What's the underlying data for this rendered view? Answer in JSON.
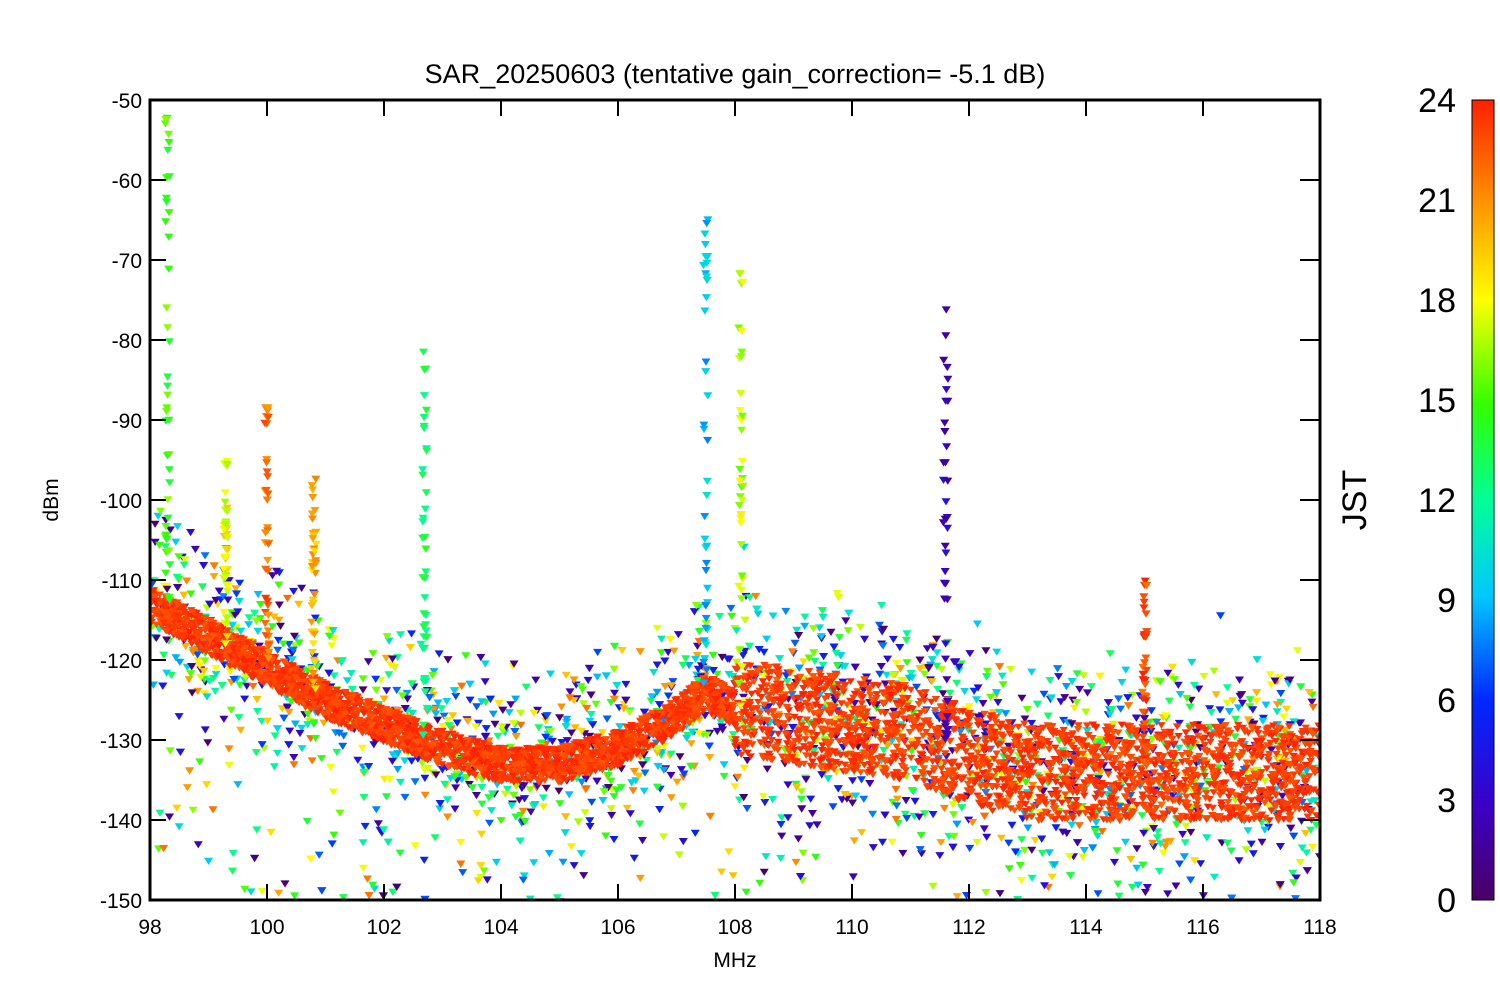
{
  "chart_data": {
    "type": "scatter",
    "title": "SAR_20250603 (tentative gain_correction= -5.1 dB)",
    "xlabel": "MHz",
    "ylabel": "dBm",
    "xlim": [
      98,
      118
    ],
    "ylim": [
      -150,
      -50
    ],
    "x_ticks": [
      "98",
      "100",
      "102",
      "104",
      "106",
      "108",
      "110",
      "112",
      "114",
      "116",
      "118"
    ],
    "y_ticks": [
      "-50",
      "-60",
      "-70",
      "-80",
      "-90",
      "-100",
      "-110",
      "-120",
      "-130",
      "-140",
      "-150"
    ],
    "colorbar": {
      "label": "JST",
      "range": [
        0,
        24
      ],
      "ticks": [
        "24",
        "21",
        "18",
        "15",
        "12",
        "9",
        "6",
        "3",
        "0"
      ],
      "colormap": "rainbow (purple-blue-cyan-green-yellow-red)"
    },
    "noise_floor_baseline": {
      "description": "dense red band of points (JST ~23) forming the spectral noise floor",
      "x": [
        98,
        99,
        100,
        101,
        102,
        103,
        104,
        105,
        106,
        107,
        107.5,
        108,
        109,
        110,
        111,
        112,
        113,
        114,
        115,
        116,
        117,
        118
      ],
      "y": [
        -113,
        -117,
        -121,
        -125,
        -128,
        -131,
        -133,
        -133,
        -131,
        -127,
        -124,
        -126,
        -127,
        -128,
        -129,
        -132,
        -134,
        -134,
        -134,
        -134,
        -134,
        -134
      ]
    },
    "spurious_peaks": [
      {
        "x": 98.3,
        "y_max": -52,
        "jst": 15
      },
      {
        "x": 99.3,
        "y_max": -92,
        "jst": 18
      },
      {
        "x": 100.0,
        "y_max": -88,
        "jst": 22
      },
      {
        "x": 100.8,
        "y_max": -97,
        "jst": 20
      },
      {
        "x": 102.7,
        "y_max": -81,
        "jst": 13
      },
      {
        "x": 107.5,
        "y_max": -63,
        "jst": 9
      },
      {
        "x": 108.1,
        "y_max": -70,
        "jst": 17
      },
      {
        "x": 111.6,
        "y_max": -76,
        "jst": 3
      },
      {
        "x": 115.0,
        "y_max": -110,
        "jst": 23
      }
    ]
  }
}
